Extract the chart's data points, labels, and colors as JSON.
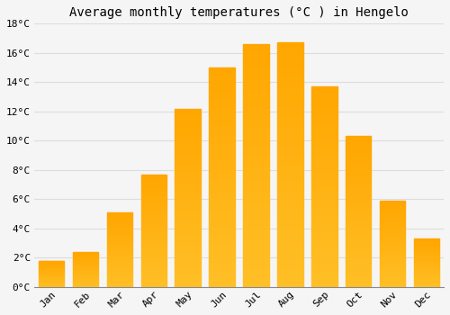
{
  "title": "Average monthly temperatures (°C ) in Hengelo",
  "months": [
    "Jan",
    "Feb",
    "Mar",
    "Apr",
    "May",
    "Jun",
    "Jul",
    "Aug",
    "Sep",
    "Oct",
    "Nov",
    "Dec"
  ],
  "values": [
    1.8,
    2.4,
    5.1,
    7.7,
    12.2,
    15.0,
    16.6,
    16.7,
    13.7,
    10.3,
    5.9,
    3.3
  ],
  "bar_color_bottom": "#FFB300",
  "bar_color_top": "#FFA500",
  "bar_edge_color": "#E8A000",
  "background_color": "#f5f5f5",
  "plot_bg_color": "#f5f5f5",
  "grid_color": "#dddddd",
  "ylim": [
    0,
    18
  ],
  "yticks": [
    0,
    2,
    4,
    6,
    8,
    10,
    12,
    14,
    16,
    18
  ],
  "title_fontsize": 10,
  "tick_fontsize": 8,
  "font_family": "monospace",
  "bar_width": 0.75
}
